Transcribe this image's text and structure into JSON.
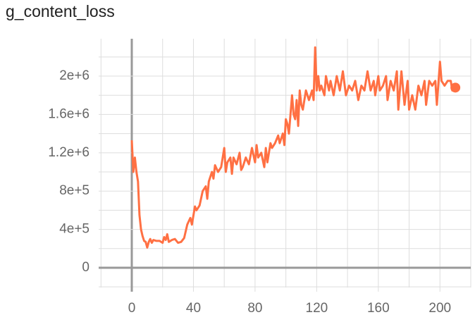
{
  "chart_data": {
    "type": "line",
    "title": "g_content_loss",
    "x": [
      0,
      1,
      2,
      3,
      4,
      5,
      6,
      7,
      8,
      9,
      10,
      11,
      12,
      13,
      14,
      16,
      18,
      20,
      21,
      22,
      23,
      24,
      26,
      28,
      30,
      32,
      34,
      36,
      38,
      39,
      41,
      42,
      44,
      46,
      48,
      49,
      50,
      52,
      53,
      54,
      56,
      58,
      60,
      61,
      62,
      64,
      65,
      66,
      68,
      70,
      71,
      72,
      74,
      76,
      78,
      80,
      81,
      82,
      84,
      86,
      87,
      88,
      90,
      91,
      93,
      95,
      96,
      98,
      99,
      100,
      101,
      102,
      104,
      105,
      106,
      107,
      108,
      109,
      110,
      111,
      113,
      115,
      117,
      118,
      119,
      120,
      121,
      122,
      123,
      125,
      126,
      128,
      129,
      131,
      133,
      135,
      137,
      139,
      141,
      143,
      145,
      147,
      149,
      151,
      153,
      155,
      157,
      158,
      160,
      161,
      163,
      165,
      166,
      168,
      170,
      172,
      173,
      175,
      177,
      179,
      180,
      182,
      184,
      186,
      188,
      190,
      191,
      193,
      195,
      197,
      198,
      200,
      201,
      203,
      205,
      207,
      208,
      210
    ],
    "series": [
      {
        "color": "#ff7043",
        "values": [
          1330000,
          1000000,
          1150000,
          1000000,
          900000,
          550000,
          400000,
          330000,
          280000,
          270000,
          210000,
          270000,
          300000,
          260000,
          290000,
          280000,
          280000,
          260000,
          320000,
          290000,
          350000,
          270000,
          290000,
          300000,
          260000,
          270000,
          310000,
          450000,
          520000,
          450000,
          640000,
          600000,
          650000,
          800000,
          850000,
          720000,
          900000,
          1000000,
          930000,
          1070000,
          1000000,
          1050000,
          1250000,
          1000000,
          1100000,
          1150000,
          980000,
          1150000,
          1080000,
          1200000,
          1020000,
          1050000,
          1150000,
          1080000,
          1250000,
          1100000,
          1280000,
          1150000,
          1200000,
          1050000,
          1250000,
          1100000,
          1300000,
          1250000,
          1300000,
          1380000,
          1300000,
          1400000,
          1280000,
          1550000,
          1500000,
          1400000,
          1800000,
          1600000,
          1550000,
          1750000,
          1480000,
          1850000,
          1700000,
          1650000,
          1850000,
          1750000,
          1850000,
          1750000,
          2300000,
          1850000,
          2000000,
          1850000,
          1900000,
          1800000,
          2000000,
          1850000,
          1950000,
          1800000,
          2000000,
          1850000,
          2050000,
          1800000,
          1900000,
          1850000,
          1950000,
          1750000,
          1900000,
          1850000,
          2050000,
          1850000,
          1950000,
          1800000,
          2000000,
          1850000,
          1900000,
          2000000,
          1750000,
          1950000,
          1850000,
          2050000,
          1650000,
          2050000,
          1700000,
          1950000,
          1650000,
          1800000,
          1650000,
          1900000,
          1800000,
          1950000,
          1700000,
          1950000,
          1900000,
          1950000,
          1700000,
          2150000,
          1950000,
          1900000,
          1950000,
          1950000,
          1850000,
          1880000
        ]
      }
    ],
    "xlim": [
      -21.5,
      220
    ],
    "ylim": [
      -206000,
      2390000
    ],
    "xticks": [
      0,
      40,
      80,
      120,
      160,
      200
    ],
    "yticks": [
      0,
      {
        "value": 400000,
        "label": "4e+5"
      },
      {
        "value": 800000,
        "label": "8e+5"
      },
      {
        "value": 1200000,
        "label": "1.2e+6"
      },
      {
        "value": 1600000,
        "label": "1.6e+6"
      },
      {
        "value": 2000000,
        "label": "2e+6"
      }
    ],
    "grid": true
  }
}
